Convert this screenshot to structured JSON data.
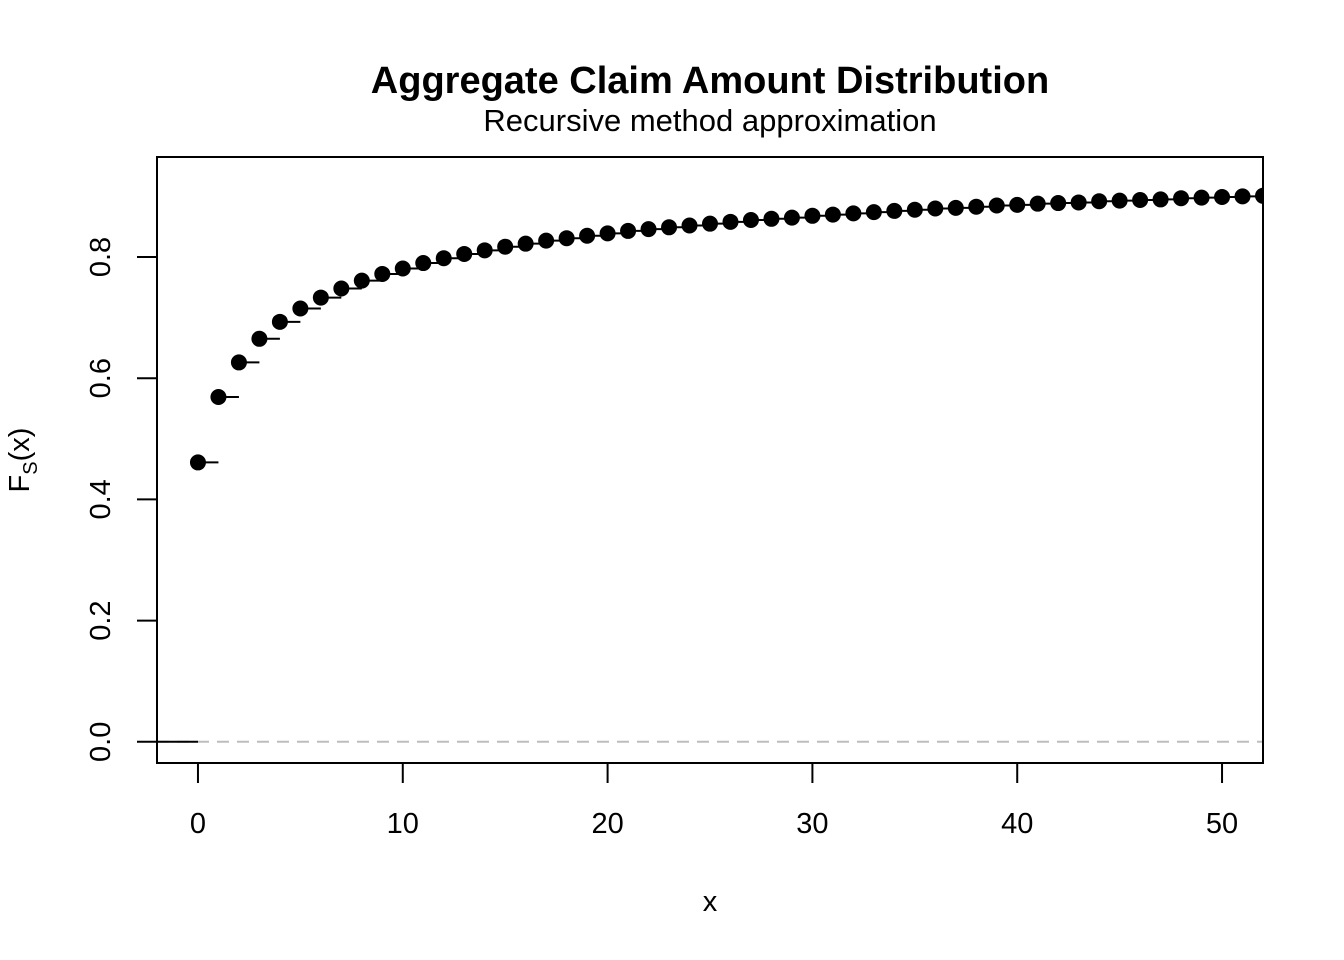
{
  "chart_data": {
    "type": "scatter",
    "title": "Aggregate Claim Amount Distribution",
    "subtitle": "Recursive method approximation",
    "xlabel": "x",
    "ylabel": {
      "main": "F",
      "sub": "S",
      "rest": "(x)"
    },
    "xlim": [
      -2,
      52
    ],
    "ylim": [
      -0.035,
      0.965
    ],
    "x_ticks": [
      0,
      10,
      20,
      30,
      40,
      50
    ],
    "x_tick_labels": [
      "0",
      "10",
      "20",
      "30",
      "40",
      "50"
    ],
    "y_ticks": [
      0.0,
      0.2,
      0.4,
      0.6,
      0.8
    ],
    "y_tick_labels": [
      "0.0",
      "0.2",
      "0.4",
      "0.6",
      "0.8"
    ],
    "grid": false,
    "reference_line": {
      "y": 0,
      "style": "dashed",
      "color": "#bdbdbd"
    },
    "step_segments": true,
    "pre_zero_step": {
      "from": -2,
      "to": 0,
      "y": 0
    },
    "series": [
      {
        "x": [
          0,
          1,
          2,
          3,
          4,
          5,
          6,
          7,
          8,
          9,
          10,
          11,
          12,
          13,
          14,
          15,
          16,
          17,
          18,
          19,
          20,
          21,
          22,
          23,
          24,
          25,
          26,
          27,
          28,
          29,
          30,
          31,
          32,
          33,
          34,
          35,
          36,
          37,
          38,
          39,
          40,
          41,
          42,
          43,
          44,
          45,
          46,
          47,
          48,
          49,
          50,
          51,
          52
        ],
        "y": [
          0.461,
          0.569,
          0.626,
          0.665,
          0.693,
          0.715,
          0.733,
          0.748,
          0.761,
          0.772,
          0.781,
          0.79,
          0.798,
          0.805,
          0.811,
          0.817,
          0.822,
          0.827,
          0.831,
          0.835,
          0.839,
          0.843,
          0.846,
          0.849,
          0.852,
          0.855,
          0.858,
          0.861,
          0.863,
          0.865,
          0.868,
          0.87,
          0.872,
          0.874,
          0.876,
          0.878,
          0.88,
          0.881,
          0.883,
          0.885,
          0.886,
          0.888,
          0.889,
          0.89,
          0.892,
          0.893,
          0.894,
          0.895,
          0.897,
          0.898,
          0.899,
          0.9,
          0.901
        ],
        "color": "#000000"
      }
    ]
  }
}
